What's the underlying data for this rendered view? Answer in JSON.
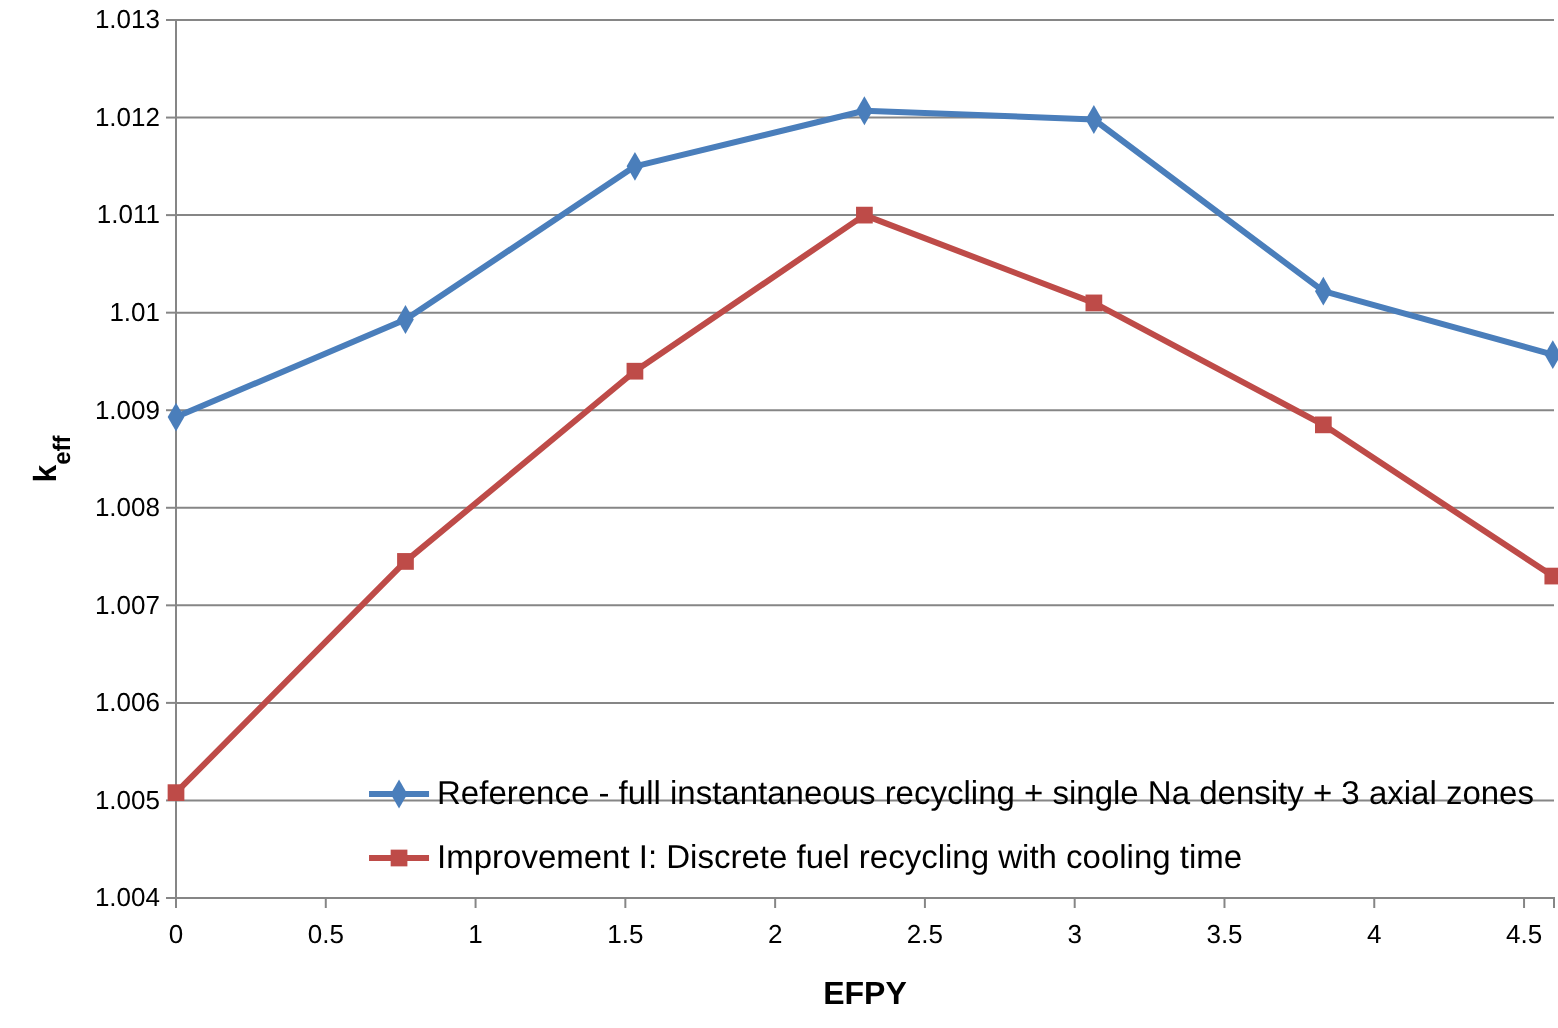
{
  "chart_data": {
    "type": "line",
    "xlabel": "EFPY",
    "ylabel": "k$_{eff}$",
    "x": [
      0,
      0.766,
      1.532,
      2.298,
      3.064,
      3.83,
      4.596
    ],
    "series": [
      {
        "name": "Reference - full instantaneous recycling + single Na density + 3 axial zones",
        "color": "#4a7ebb",
        "marker": "diamond",
        "values": [
          1.00893,
          1.00993,
          1.0115,
          1.01207,
          1.01198,
          1.01022,
          1.00957
        ]
      },
      {
        "name": "Improvement I: Discrete fuel recycling with cooling time",
        "color": "#be4b48",
        "marker": "square",
        "values": [
          1.00508,
          1.00745,
          1.0094,
          1.011,
          1.0101,
          1.00885,
          1.0073
        ]
      }
    ],
    "xlim": [
      0,
      4.6
    ],
    "xticks": [
      0,
      0.5,
      1,
      1.5,
      2,
      2.5,
      3,
      3.5,
      4,
      4.5
    ],
    "ylim": [
      1.004,
      1.013
    ],
    "yticks": [
      1.004,
      1.005,
      1.006,
      1.007,
      1.008,
      1.009,
      1.01,
      1.011,
      1.012,
      1.013
    ],
    "grid": "y",
    "legend": "bottom right",
    "line_style": "solid"
  }
}
